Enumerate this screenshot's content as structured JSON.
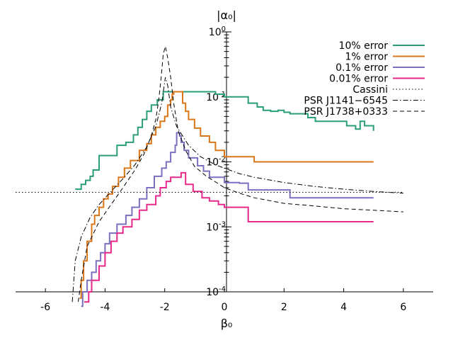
{
  "chart_data": {
    "type": "line",
    "title": "",
    "xlabel": "β₀",
    "ylabel": "|α₀|",
    "xlim": [
      -7,
      7
    ],
    "ylim": [
      0.0001,
      1
    ],
    "yscale": "log",
    "legend_position": "top-right",
    "x_ticks": [
      -6,
      -4,
      -2,
      0,
      2,
      4,
      6
    ],
    "x_tick_labels": [
      "-6",
      "-4",
      "-2",
      "0",
      "2",
      "4",
      "6"
    ],
    "y_tick_labels": [
      {
        "base": "10",
        "exp": "0",
        "value": 1
      },
      {
        "base": "10",
        "exp": "-1",
        "value": 0.1
      },
      {
        "base": "10",
        "exp": "-2",
        "value": 0.01
      },
      {
        "base": "10",
        "exp": "-3",
        "value": 0.001
      },
      {
        "base": "10",
        "exp": "-4",
        "value": 0.0001
      }
    ],
    "series": [
      {
        "name": "10% error",
        "color": "#2a9d7a",
        "style": "solid",
        "x": [
          -5.0,
          -4.8,
          -4.65,
          -4.5,
          -4.4,
          -4.2,
          -3.9,
          -3.6,
          -3.3,
          -3.05,
          -2.9,
          -2.75,
          -2.6,
          -2.45,
          -2.25,
          -2.05,
          -0.45,
          -0.3,
          0.0,
          0.4,
          0.8,
          1.1,
          1.3,
          1.55,
          1.8,
          2.0,
          2.2,
          2.6,
          2.8,
          3.05,
          3.4,
          4.1,
          4.4,
          4.55,
          4.7,
          5.0
        ],
        "y": [
          0.0038,
          0.0045,
          0.0052,
          0.006,
          0.0075,
          0.0125,
          0.0125,
          0.018,
          0.02,
          0.026,
          0.034,
          0.045,
          0.06,
          0.075,
          0.09,
          0.12,
          0.12,
          0.11,
          0.1,
          0.1,
          0.08,
          0.07,
          0.062,
          0.06,
          0.062,
          0.058,
          0.055,
          0.055,
          0.048,
          0.042,
          0.042,
          0.036,
          0.032,
          0.042,
          0.036,
          0.03
        ]
      },
      {
        "name": "1% error",
        "color": "#d97618",
        "style": "solid",
        "x": [
          -4.85,
          -4.8,
          -4.72,
          -4.6,
          -4.45,
          -4.35,
          -4.2,
          -4.05,
          -3.9,
          -3.75,
          -3.55,
          -3.35,
          -3.15,
          -2.85,
          -2.6,
          -2.45,
          -2.3,
          -2.15,
          -2.0,
          -1.9,
          -1.8,
          -1.75,
          -1.7,
          -1.6,
          -1.5,
          -1.4,
          -1.3,
          -1.2,
          -1.0,
          -0.8,
          -0.5,
          -0.3,
          0.0,
          0.6,
          1.0,
          5.0
        ],
        "y": [
          8e-05,
          0.00015,
          0.0003,
          0.0006,
          0.0011,
          0.0015,
          0.002,
          0.0027,
          0.0032,
          0.0042,
          0.0058,
          0.008,
          0.0105,
          0.015,
          0.019,
          0.026,
          0.034,
          0.042,
          0.05,
          0.075,
          0.09,
          0.11,
          0.12,
          0.12,
          0.12,
          0.08,
          0.06,
          0.045,
          0.033,
          0.025,
          0.02,
          0.015,
          0.012,
          0.012,
          0.01,
          0.01
        ]
      },
      {
        "name": "0.1% error",
        "color": "#7b6fc0",
        "style": "solid",
        "x": [
          -4.8,
          -4.75,
          -4.6,
          -4.45,
          -4.3,
          -4.15,
          -4.0,
          -3.85,
          -3.6,
          -3.3,
          -3.1,
          -2.85,
          -2.6,
          -2.35,
          -2.1,
          -1.95,
          -1.8,
          -1.65,
          -1.6,
          -1.5,
          -1.45,
          -1.35,
          -1.2,
          -0.9,
          -0.7,
          -0.5,
          0.0,
          0.5,
          0.8,
          2.2,
          5.0
        ],
        "y": [
          6e-05,
          0.0001,
          0.00015,
          0.0002,
          0.0003,
          0.0004,
          0.00055,
          0.0008,
          0.0011,
          0.0015,
          0.002,
          0.0027,
          0.004,
          0.006,
          0.008,
          0.01,
          0.014,
          0.018,
          0.028,
          0.025,
          0.02,
          0.015,
          0.0115,
          0.0087,
          0.0072,
          0.0058,
          0.0048,
          0.0047,
          0.0037,
          0.0028,
          0.0028
        ]
      },
      {
        "name": "0.01% error",
        "color": "#e7298a",
        "style": "solid",
        "x": [
          -4.7,
          -4.55,
          -4.45,
          -4.2,
          -4.0,
          -3.8,
          -3.6,
          -3.4,
          -3.1,
          -2.85,
          -2.6,
          -2.3,
          -2.15,
          -1.95,
          -1.8,
          -1.6,
          -1.45,
          -1.3,
          -1.05,
          -0.75,
          -0.5,
          -0.2,
          0.0,
          0.3,
          0.8,
          5.0
        ],
        "y": [
          7e-05,
          0.0001,
          0.00015,
          0.00025,
          0.0004,
          0.0006,
          0.0008,
          0.001,
          0.0013,
          0.0018,
          0.0022,
          0.003,
          0.004,
          0.005,
          0.0058,
          0.0058,
          0.0068,
          0.0045,
          0.0035,
          0.0028,
          0.0025,
          0.0022,
          0.002,
          0.002,
          0.0012,
          0.0012
        ]
      },
      {
        "name": "Cassini",
        "color": "#000000",
        "style": "dotted",
        "x": [
          -7,
          6
        ],
        "y": [
          0.0034,
          0.0034
        ]
      },
      {
        "name": "PSR J1141−6545",
        "color": "#000000",
        "style": "dashdot",
        "x": [
          -5.1,
          -5.0,
          -4.8,
          -4.5,
          -4.2,
          -3.8,
          -3.4,
          -3.0,
          -2.6,
          -2.3,
          -2.1,
          -1.98,
          -1.9,
          -1.8,
          -1.6,
          -1.2,
          -0.8,
          -0.3,
          0.0,
          0.5,
          1.0,
          2.0,
          3.0,
          4.0,
          5.0,
          6.0
        ],
        "y": [
          7e-05,
          0.0003,
          0.0007,
          0.0014,
          0.0022,
          0.0035,
          0.0055,
          0.009,
          0.017,
          0.035,
          0.08,
          0.2,
          0.15,
          0.07,
          0.035,
          0.018,
          0.012,
          0.009,
          0.008,
          0.0066,
          0.0058,
          0.0048,
          0.0042,
          0.0038,
          0.0035,
          0.0033
        ]
      },
      {
        "name": "PSR J1738+0333",
        "color": "#000000",
        "style": "dashed",
        "x": [
          -4.9,
          -4.8,
          -4.6,
          -4.2,
          -3.8,
          -3.4,
          -3.0,
          -2.7,
          -2.45,
          -2.3,
          -2.2,
          -2.12,
          -2.05,
          -1.98,
          -1.9,
          -1.8,
          -1.7,
          -1.55,
          -1.3,
          -1.0,
          -0.6,
          -0.2,
          0.0,
          0.5,
          1.0,
          2.0,
          3.0,
          4.0,
          5.0,
          6.0
        ],
        "y": [
          7e-05,
          0.00015,
          0.0005,
          0.0012,
          0.0022,
          0.004,
          0.0075,
          0.013,
          0.025,
          0.045,
          0.09,
          0.2,
          0.45,
          0.6,
          0.4,
          0.2,
          0.08,
          0.03,
          0.015,
          0.0085,
          0.006,
          0.0046,
          0.004,
          0.0033,
          0.0028,
          0.0023,
          0.0021,
          0.0019,
          0.0018,
          0.0017
        ]
      }
    ]
  }
}
